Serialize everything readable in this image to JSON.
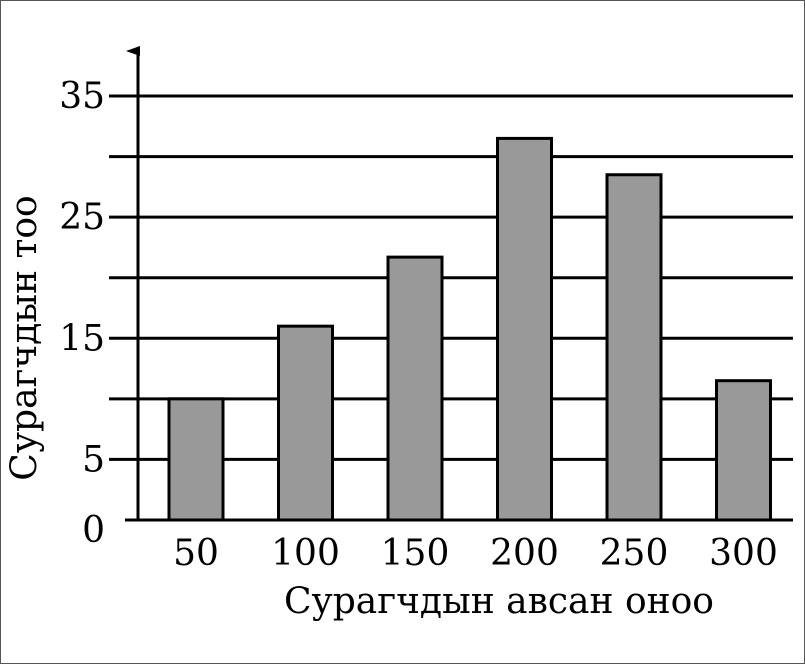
{
  "chart_data": {
    "type": "bar",
    "categories": [
      "50",
      "100",
      "150",
      "200",
      "250",
      "300"
    ],
    "values": [
      10,
      16,
      21.7,
      31.5,
      28.5,
      11.5
    ],
    "xlabel": "Сурагчдын авсан оноо",
    "ylabel": "Сурагчдын тоо",
    "ylim": [
      0,
      35
    ],
    "yticks": [
      0,
      5,
      15,
      25,
      35
    ],
    "gridlines": [
      5,
      10,
      15,
      20,
      25,
      30,
      35
    ],
    "grid": true,
    "colors": {
      "bar": "#999999",
      "stroke": "#000000"
    }
  }
}
